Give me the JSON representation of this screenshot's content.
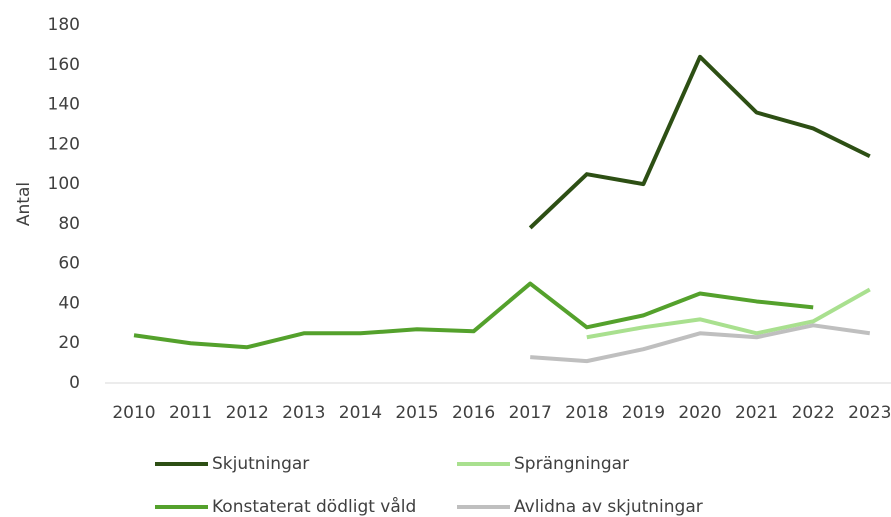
{
  "chart_data": {
    "type": "line",
    "y_label": "Antal",
    "categories": [
      "2010",
      "2011",
      "2012",
      "2013",
      "2014",
      "2015",
      "2016",
      "2017",
      "2018",
      "2019",
      "2020",
      "2021",
      "2022",
      "2023"
    ],
    "ylim": [
      0,
      180
    ],
    "yticks": [
      0,
      20,
      40,
      60,
      80,
      100,
      120,
      140,
      160,
      180
    ],
    "grid": false,
    "series": [
      {
        "name": "Skjutningar",
        "color": "#2d4f14",
        "values": [
          null,
          null,
          null,
          null,
          null,
          null,
          null,
          78,
          105,
          100,
          164,
          136,
          128,
          114
        ]
      },
      {
        "name": "Sprängningar",
        "color": "#a9e08f",
        "values": [
          null,
          null,
          null,
          null,
          null,
          null,
          null,
          null,
          23,
          28,
          32,
          25,
          31,
          47
        ]
      },
      {
        "name": "Konstaterat dödligt våld",
        "color": "#54a12c",
        "values": [
          24,
          20,
          18,
          25,
          25,
          27,
          26,
          50,
          28,
          34,
          45,
          41,
          38,
          null
        ]
      },
      {
        "name": "Avlidna av skjutningar",
        "color": "#bfbfbf",
        "values": [
          null,
          null,
          null,
          null,
          null,
          null,
          null,
          13,
          11,
          17,
          25,
          23,
          29,
          25
        ]
      }
    ]
  }
}
